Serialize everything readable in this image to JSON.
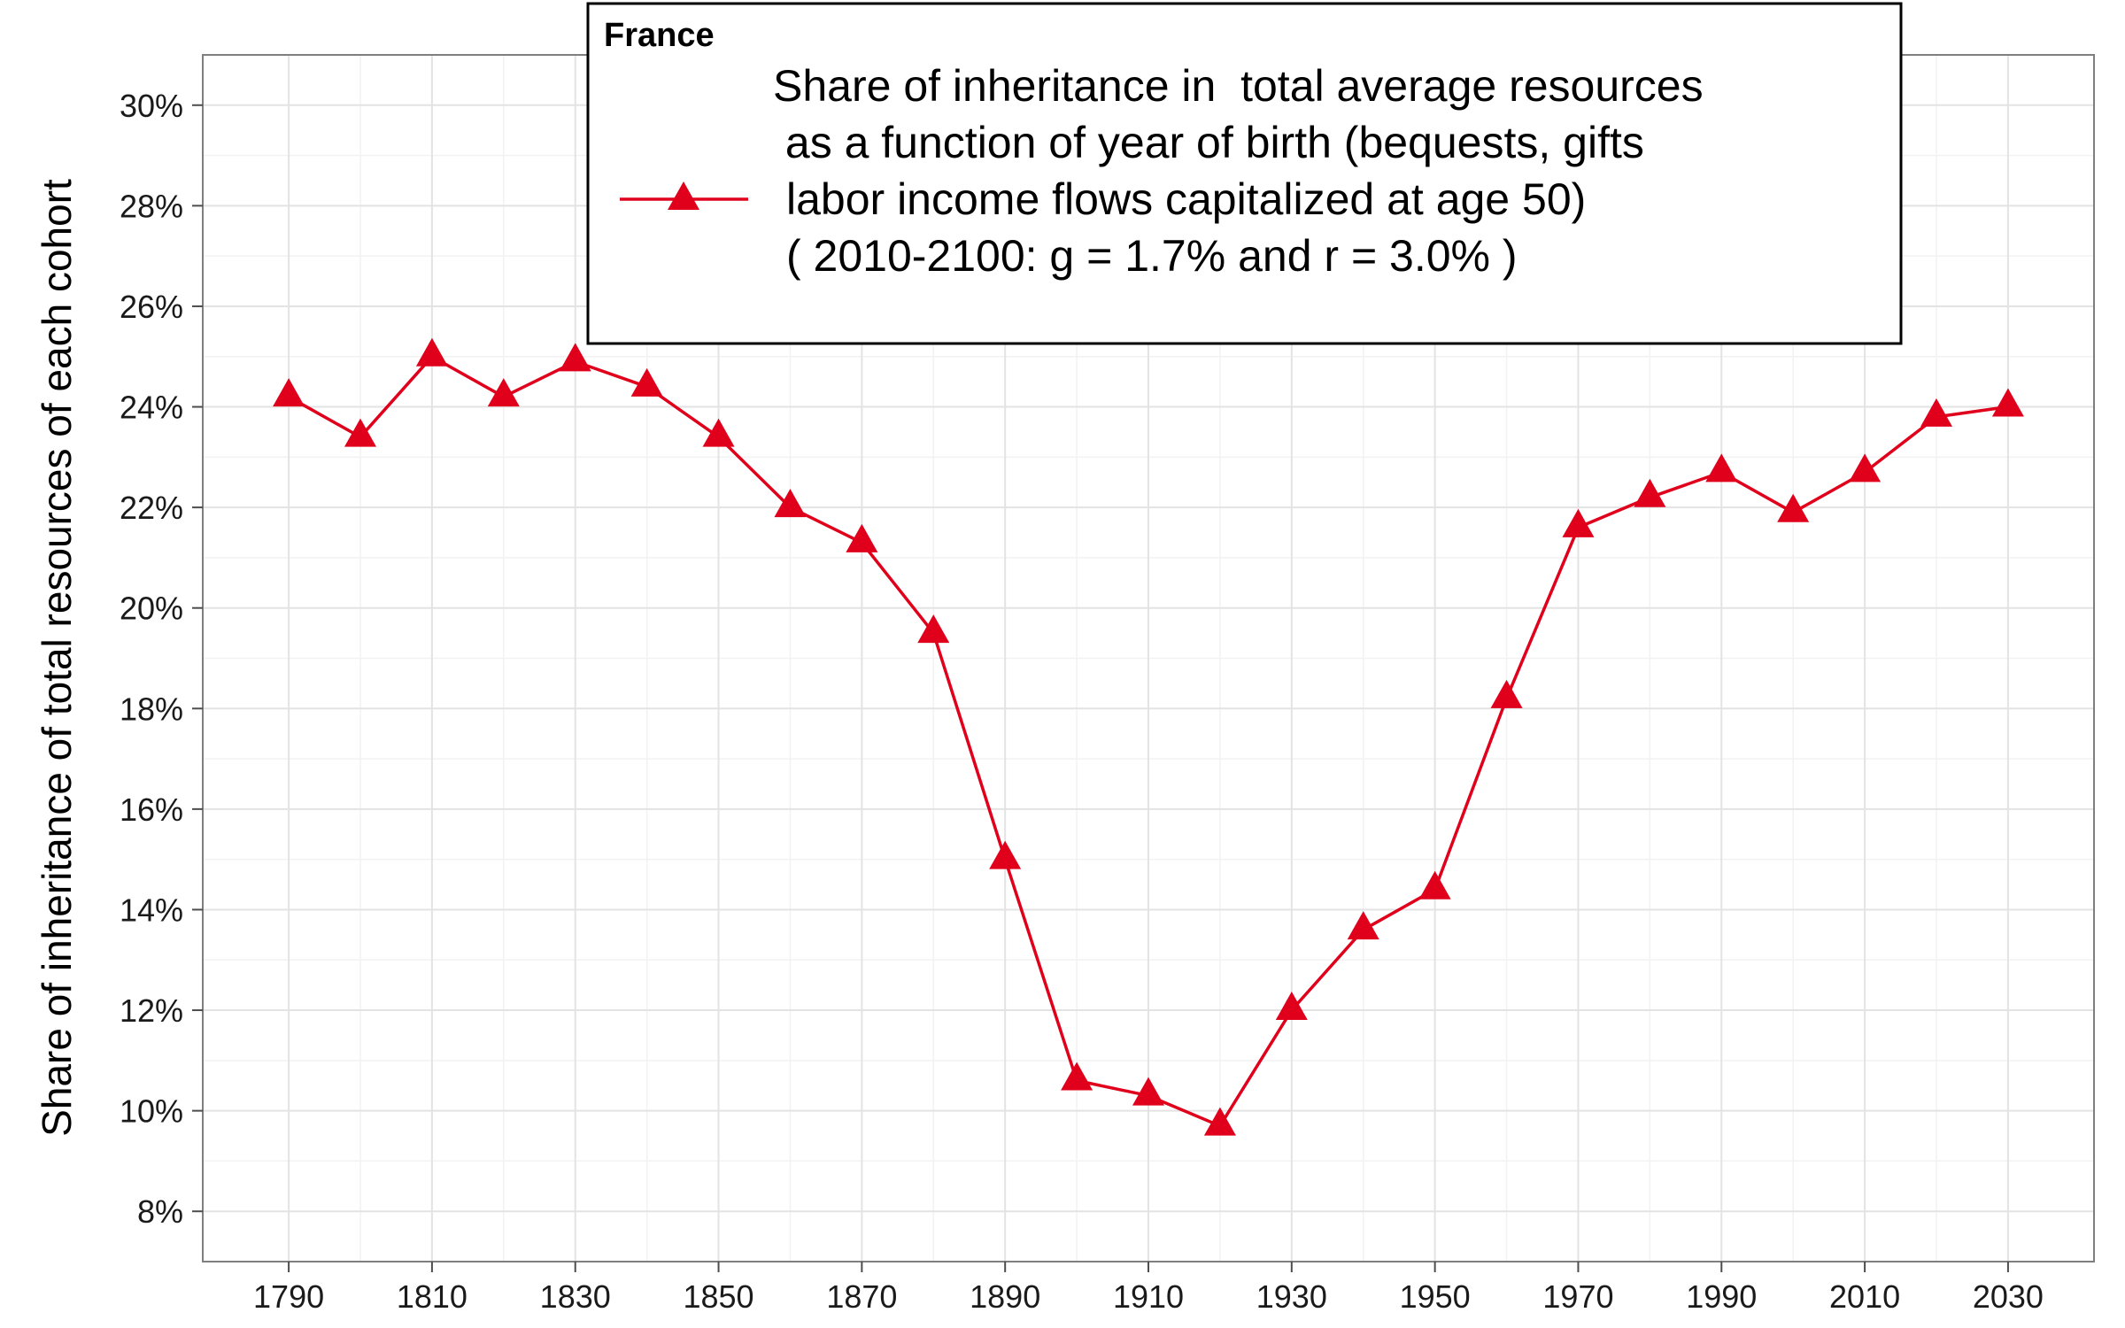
{
  "chart_data": {
    "type": "line",
    "title": "",
    "xlabel": "",
    "ylabel": "Share of inheritance of total resources of each cohort",
    "xlim": [
      1778,
      2042
    ],
    "ylim": [
      7,
      31
    ],
    "x_ticks": [
      1790,
      1810,
      1830,
      1850,
      1870,
      1890,
      1910,
      1930,
      1950,
      1970,
      1990,
      2010,
      2030
    ],
    "y_ticks": [
      8,
      10,
      12,
      14,
      16,
      18,
      20,
      22,
      24,
      26,
      28,
      30
    ],
    "y_tick_labels": [
      "8%",
      "10%",
      "12%",
      "14%",
      "16%",
      "18%",
      "20%",
      "22%",
      "24%",
      "26%",
      "28%",
      "30%"
    ],
    "grid": true,
    "legend": {
      "placement": "top-center",
      "heading": "France",
      "lines": [
        "Share of inheritance in  total average resources",
        " as a function of year of birth (bequests, gifts",
        "labor income flows capitalized at age 50)",
        "( 2010-2100: g = 1.7% and r = 3.0% )"
      ]
    },
    "series": [
      {
        "color": "#e0001b",
        "marker": "triangle",
        "x": [
          1790,
          1800,
          1810,
          1820,
          1830,
          1840,
          1850,
          1860,
          1870,
          1880,
          1890,
          1900,
          1910,
          1920,
          1930,
          1940,
          1950,
          1960,
          1970,
          1980,
          1990,
          2000,
          2010,
          2020,
          2030
        ],
        "values": [
          24.2,
          23.4,
          25.0,
          24.2,
          24.9,
          24.4,
          23.4,
          22.0,
          21.3,
          19.5,
          15.0,
          10.6,
          10.3,
          9.7,
          12.0,
          13.6,
          14.4,
          18.2,
          21.6,
          22.2,
          22.7,
          21.9,
          22.7,
          23.8,
          24.0
        ]
      }
    ]
  }
}
